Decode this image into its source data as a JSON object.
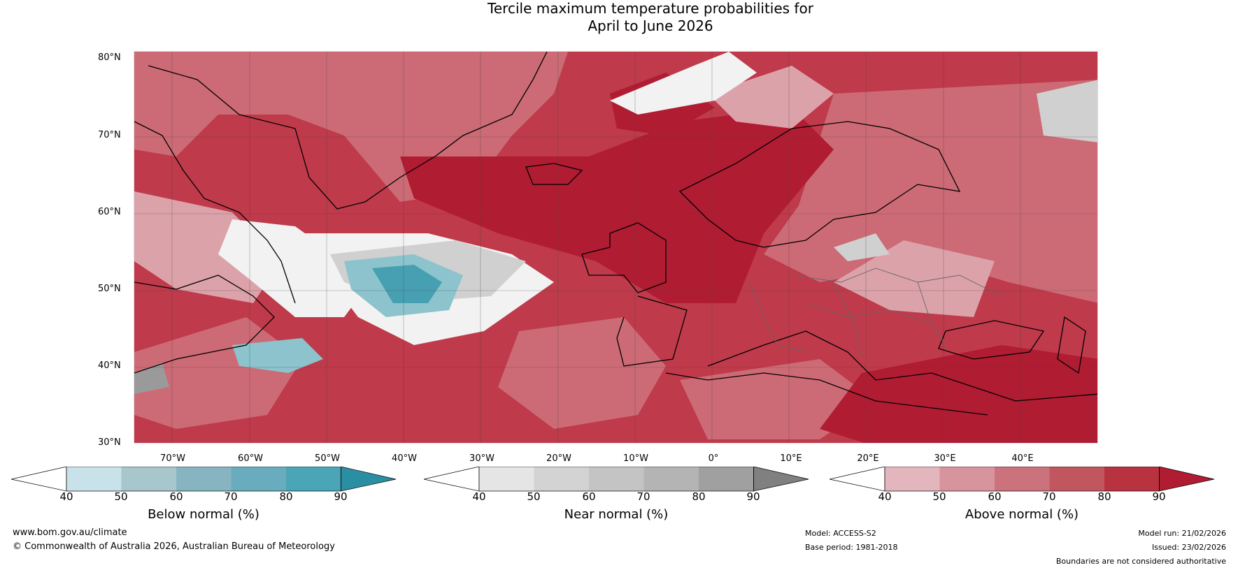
{
  "title_line1": "Tercile maximum temperature probabilities for",
  "title_line2": "April to June 2026",
  "lat_labels": [
    "80°N",
    "70°N",
    "60°N",
    "50°N",
    "40°N",
    "30°N"
  ],
  "lon_labels": [
    "70°W",
    "60°W",
    "50°W",
    "40°W",
    "30°W",
    "20°W",
    "10°W",
    "0°",
    "10°E",
    "20°E",
    "30°E",
    "40°E"
  ],
  "colorbars": [
    {
      "title": "Below normal (%)",
      "ticks": [
        "40",
        "50",
        "60",
        "70",
        "80",
        "90"
      ],
      "colors": [
        "#ffffff",
        "#c9e2e9",
        "#a7c7cd",
        "#87b4c1",
        "#69acbd",
        "#4aa5b6",
        "#2b8fa3"
      ]
    },
    {
      "title": "Near normal (%)",
      "ticks": [
        "40",
        "50",
        "60",
        "70",
        "80",
        "90"
      ],
      "colors": [
        "#ffffff",
        "#e5e5e5",
        "#d3d3d3",
        "#c4c4c4",
        "#b4b4b4",
        "#a0a0a0",
        "#808080"
      ]
    },
    {
      "title": "Above normal (%)",
      "ticks": [
        "40",
        "50",
        "60",
        "70",
        "80",
        "90"
      ],
      "colors": [
        "#ffffff",
        "#e3b5bc",
        "#d8949d",
        "#cc727d",
        "#c2565f",
        "#b8323f",
        "#b01c32"
      ]
    }
  ],
  "map_colors": {
    "base": "#bf3a4a",
    "deep": "#b01c32",
    "mid": "#cc6b76",
    "light": "#dca2aa",
    "white": "#f2f2f2",
    "grey": "#d0d0d0",
    "teal_light": "#8cc3cc",
    "teal": "#46a0b2",
    "dark_grey": "#9a9a9a"
  },
  "footer": {
    "website": "www.bom.gov.au/climate",
    "copyright": "© Commonwealth of Australia 2026, Australian Bureau of Meteorology",
    "model": "Model: ACCESS-S2",
    "base_period": "Base period: 1981-2018",
    "model_run": "Model run: 21/02/2026",
    "issued": "Issued: 23/02/2026",
    "disclaimer": "Boundaries are not considered authoritative"
  }
}
